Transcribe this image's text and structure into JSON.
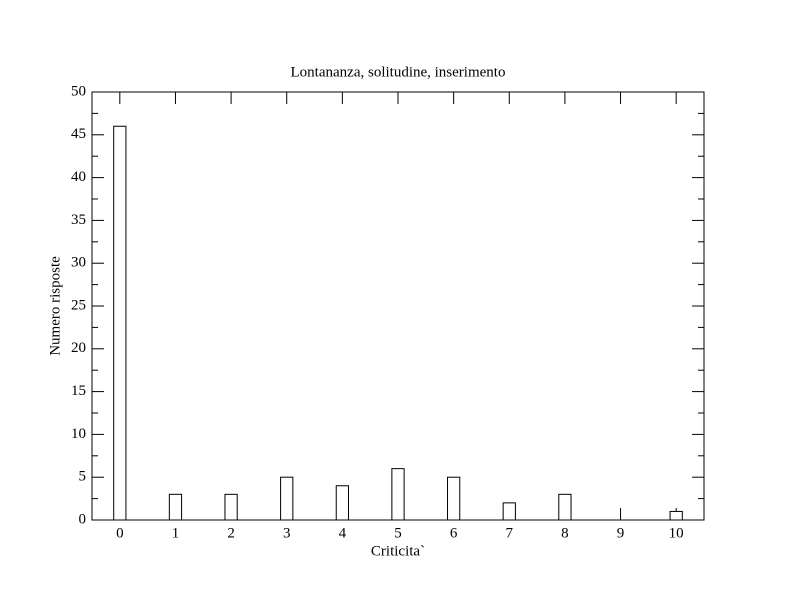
{
  "chart_data": {
    "type": "bar",
    "title": "Lontananza, solitudine, inserimento",
    "x_label": "Criticita`",
    "y_label": "Numero risposte",
    "x": [
      0,
      1,
      2,
      3,
      4,
      5,
      6,
      7,
      8,
      9,
      10
    ],
    "values": [
      46,
      3,
      3,
      5,
      4,
      6,
      5,
      2,
      3,
      0,
      1
    ],
    "color": "#ffffff",
    "xlim": [
      -0.5,
      10.5
    ],
    "xticks": [
      0,
      1,
      2,
      3,
      4,
      5,
      6,
      7,
      8,
      9,
      10
    ],
    "ylim": [
      0,
      50
    ],
    "yticks": [
      0,
      5,
      10,
      15,
      20,
      25,
      30,
      35,
      40,
      45,
      50
    ]
  }
}
